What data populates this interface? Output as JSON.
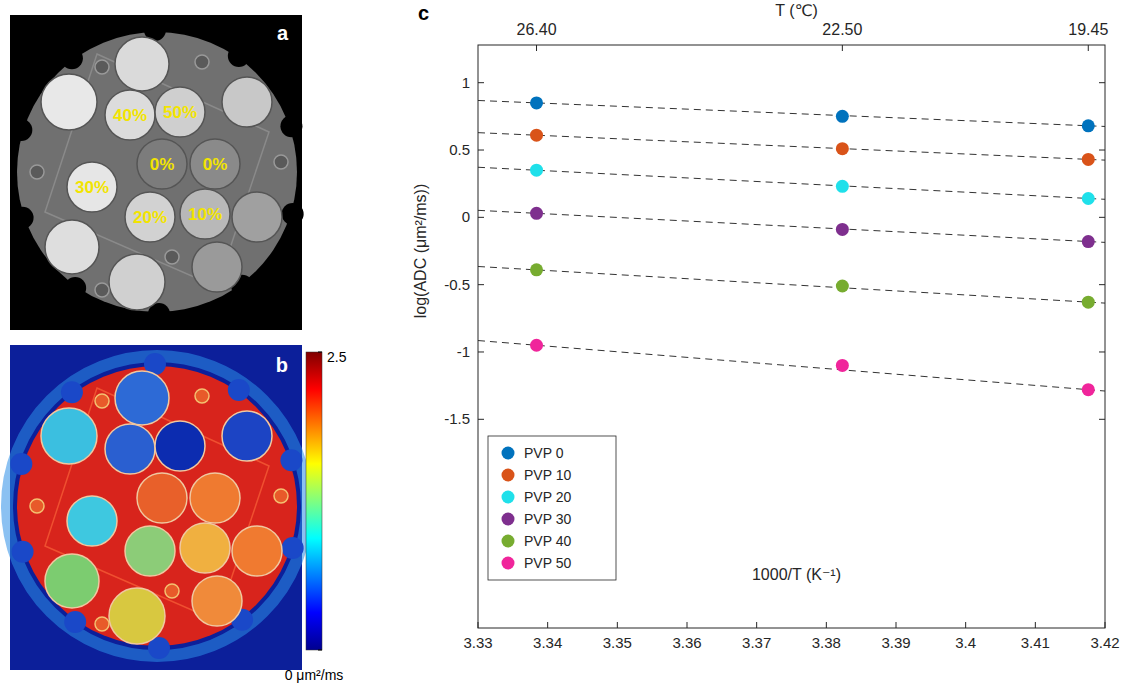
{
  "panel_a": {
    "letter": "a",
    "labels": [
      "40%",
      "50%",
      "0%",
      "0%",
      "30%",
      "20%",
      "10%"
    ]
  },
  "panel_b": {
    "letter": "b",
    "colorbar": {
      "range": [
        0,
        2.5
      ],
      "ticks": [
        2.5,
        {
          "value": 0,
          "label": "0 μm²/ms"
        }
      ]
    }
  },
  "chart_data": {
    "type": "scatter",
    "panel_label": "c",
    "x_label": "1000/T (K⁻¹)",
    "y_label": "log(ADC (μm²/ms))",
    "x2_label": "T (℃)",
    "x": [
      3.3384,
      3.3823,
      3.4176
    ],
    "xlim": [
      3.33,
      3.42
    ],
    "xticks": [
      3.33,
      3.34,
      3.35,
      3.36,
      3.37,
      3.38,
      3.39,
      3.4,
      3.41,
      3.42
    ],
    "x2lim": [
      3.33,
      3.42
    ],
    "x2ticks": [
      {
        "value": 3.3384,
        "label": "26.40"
      },
      {
        "value": 3.3823,
        "label": "22.50"
      },
      {
        "value": 3.4176,
        "label": "19.45"
      }
    ],
    "ylim": [
      -3.05,
      1.28
    ],
    "yticks": [
      -1.5,
      -1,
      -0.5,
      0,
      0.5,
      1
    ],
    "grid": false,
    "legend": "lower left",
    "marker": "circle",
    "line_style": "dashed",
    "series": [
      {
        "name": "PVP 0",
        "color": "#0072bd",
        "values": [
          0.85,
          0.75,
          0.68
        ],
        "fit": {
          "x": [
            3.33,
            3.42
          ],
          "values": [
            0.868,
            0.675
          ]
        }
      },
      {
        "name": "PVP 10",
        "color": "#d95319",
        "values": [
          0.61,
          0.51,
          0.43
        ],
        "fit": {
          "x": [
            3.33,
            3.42
          ],
          "values": [
            0.629,
            0.425
          ]
        }
      },
      {
        "name": "PVP 20",
        "color": "#1fe0ea",
        "values": [
          0.35,
          0.23,
          0.14
        ],
        "fit": {
          "x": [
            3.33,
            3.42
          ],
          "values": [
            0.372,
            0.134
          ]
        }
      },
      {
        "name": "PVP 30",
        "color": "#7e2f8e",
        "values": [
          0.03,
          -0.09,
          -0.18
        ],
        "fit": {
          "x": [
            3.33,
            3.42
          ],
          "values": [
            0.052,
            -0.186
          ]
        }
      },
      {
        "name": "PVP 40",
        "color": "#77ac30",
        "values": [
          -0.39,
          -0.51,
          -0.63
        ],
        "fit": {
          "x": [
            3.33,
            3.42
          ],
          "values": [
            -0.365,
            -0.637
          ]
        }
      },
      {
        "name": "PVP 50",
        "color": "#f0259b",
        "values": [
          -0.95,
          -1.1,
          -1.28
        ],
        "fit": {
          "x": [
            3.33,
            3.42
          ],
          "values": [
            -0.915,
            -1.29
          ]
        }
      }
    ]
  }
}
